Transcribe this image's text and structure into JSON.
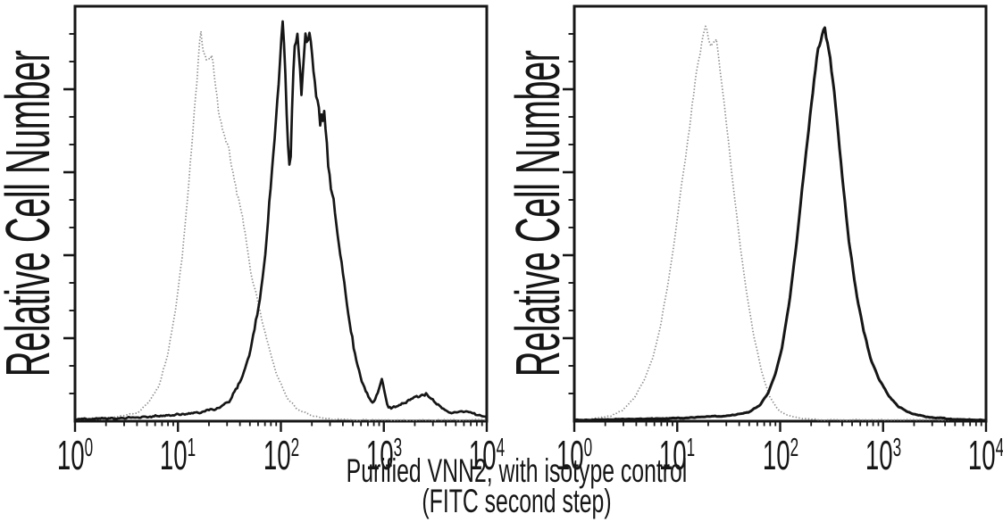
{
  "figure": {
    "y_axis_label": "Relative Cell Number",
    "caption_line1": "Purified VNN2, with isotype control",
    "caption_line2": "(FITC second step)",
    "colors": {
      "background": "#ffffff",
      "axis": "#161616",
      "sample_curve": "#161616",
      "isotype_curve": "#8c8c8c"
    }
  },
  "chart_data": [
    {
      "type": "line",
      "panel": "left",
      "title": "",
      "xlabel": "Purified VNN2, with isotype control (FITC second step)",
      "ylabel": "Relative Cell Number",
      "x_scale": "log10",
      "xlim": [
        1,
        10000
      ],
      "x_tick_base": "10",
      "x_tick_exponents": [
        0,
        1,
        2,
        3,
        4
      ],
      "y_ticks": "unlabeled relative scale, 5 major divisions",
      "grid": false,
      "legend": "none",
      "series": [
        {
          "name": "isotype control",
          "line": "dotted",
          "color": "#8c8c8c",
          "noise": 0.045,
          "peak_x": 20,
          "x_log10": [
            0.1,
            0.4,
            0.6,
            0.72,
            0.82,
            0.9,
            0.98,
            1.05,
            1.11,
            1.17,
            1.22,
            1.27,
            1.33,
            1.41,
            1.48,
            1.55,
            1.62,
            1.7,
            1.78,
            1.86,
            1.96,
            2.05,
            2.15,
            2.3,
            2.5,
            2.75
          ],
          "rel_height": [
            0.004,
            0.01,
            0.02,
            0.045,
            0.09,
            0.16,
            0.27,
            0.42,
            0.58,
            0.78,
            0.95,
            0.87,
            0.88,
            0.71,
            0.67,
            0.57,
            0.5,
            0.37,
            0.28,
            0.2,
            0.11,
            0.06,
            0.03,
            0.012,
            0.005,
            0.003
          ]
        },
        {
          "name": "Purified VNN2",
          "line": "solid",
          "color": "#161616",
          "noise": 0.08,
          "peak_x": 150,
          "x_log10": [
            0.05,
            0.5,
            0.9,
            1.2,
            1.4,
            1.52,
            1.61,
            1.7,
            1.79,
            1.86,
            1.91,
            1.96,
            2.02,
            2.06,
            2.09,
            2.13,
            2.16,
            2.2,
            2.24,
            2.28,
            2.33,
            2.38,
            2.42,
            2.46,
            2.51,
            2.56,
            2.61,
            2.66,
            2.72,
            2.78,
            2.85,
            2.9,
            2.95,
            2.98,
            3.04,
            3.15,
            3.28,
            3.41,
            3.52,
            3.65,
            3.8,
            3.97
          ],
          "rel_height": [
            0.005,
            0.008,
            0.012,
            0.02,
            0.032,
            0.055,
            0.1,
            0.16,
            0.28,
            0.44,
            0.58,
            0.74,
            0.96,
            0.72,
            0.6,
            0.88,
            0.94,
            0.78,
            0.9,
            0.93,
            0.8,
            0.72,
            0.74,
            0.62,
            0.52,
            0.43,
            0.34,
            0.25,
            0.16,
            0.1,
            0.06,
            0.045,
            0.075,
            0.105,
            0.03,
            0.04,
            0.055,
            0.065,
            0.04,
            0.018,
            0.025,
            0.01
          ]
        }
      ]
    },
    {
      "type": "line",
      "panel": "right",
      "title": "",
      "xlabel": "Purified VNN2, with isotype control (FITC second step)",
      "ylabel": "Relative Cell Number",
      "x_scale": "log10",
      "xlim": [
        1,
        10000
      ],
      "x_tick_base": "10",
      "x_tick_exponents": [
        0,
        1,
        2,
        3,
        4
      ],
      "y_ticks": "unlabeled relative scale, 5 major divisions",
      "grid": false,
      "legend": "none",
      "series": [
        {
          "name": "isotype control",
          "line": "dotted",
          "color": "#8c8c8c",
          "noise": 0.022,
          "peak_x": 19,
          "x_log10": [
            0.1,
            0.35,
            0.48,
            0.58,
            0.67,
            0.76,
            0.84,
            0.91,
            0.98,
            1.05,
            1.12,
            1.19,
            1.275,
            1.33,
            1.38,
            1.45,
            1.52,
            1.59,
            1.66,
            1.74,
            1.82,
            1.9,
            1.99,
            2.09,
            2.2,
            2.4
          ],
          "rel_height": [
            0.004,
            0.012,
            0.028,
            0.055,
            0.095,
            0.15,
            0.23,
            0.33,
            0.45,
            0.58,
            0.71,
            0.85,
            0.955,
            0.9,
            0.92,
            0.78,
            0.62,
            0.47,
            0.33,
            0.21,
            0.12,
            0.058,
            0.025,
            0.012,
            0.006,
            0.003
          ]
        },
        {
          "name": "Purified VNN2",
          "line": "solid",
          "color": "#161616",
          "noise": 0.02,
          "peak_x": 270,
          "x_log10": [
            0.1,
            0.6,
            1.1,
            1.5,
            1.7,
            1.8,
            1.88,
            1.95,
            2.02,
            2.09,
            2.16,
            2.23,
            2.3,
            2.37,
            2.43,
            2.49,
            2.55,
            2.61,
            2.67,
            2.74,
            2.81,
            2.88,
            2.96,
            3.05,
            3.15,
            3.28,
            3.45,
            3.65,
            3.9
          ],
          "rel_height": [
            0.003,
            0.005,
            0.008,
            0.013,
            0.022,
            0.038,
            0.065,
            0.11,
            0.18,
            0.29,
            0.43,
            0.6,
            0.76,
            0.9,
            0.955,
            0.87,
            0.73,
            0.57,
            0.43,
            0.31,
            0.22,
            0.15,
            0.1,
            0.062,
            0.035,
            0.018,
            0.009,
            0.005,
            0.003
          ]
        }
      ]
    }
  ]
}
